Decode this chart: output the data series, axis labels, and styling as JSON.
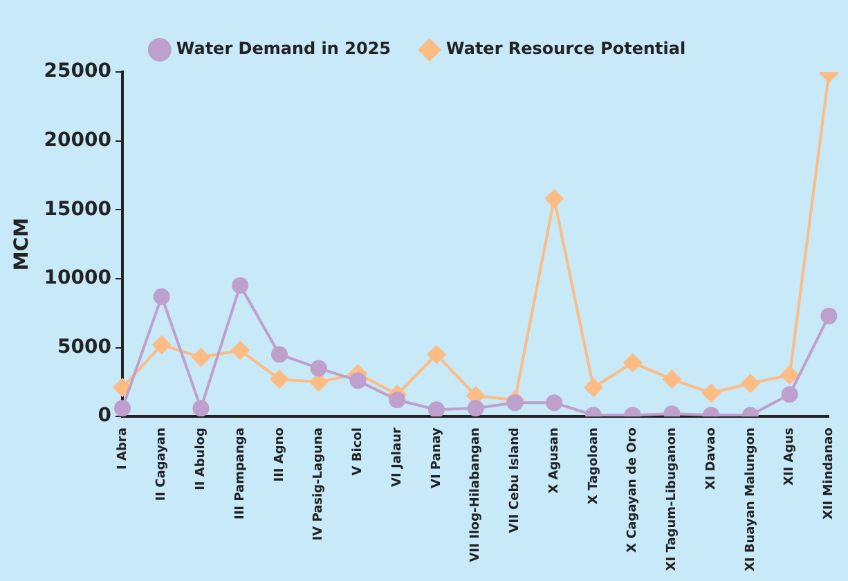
{
  "chart_data": {
    "type": "line",
    "ylabel": "MCM",
    "categories": [
      "I Abra",
      "II Cagayan",
      "II Abulog",
      "III Pampanga",
      "III Agno",
      "IV Pasig-Laguna",
      "V Bicol",
      "VI Jalaur",
      "VI Panay",
      "VII Ilog-Hilabangan",
      "VII Cebu Island",
      "X Agusan",
      "X Tagoloan",
      "X Cagayan de Oro",
      "XI Tagum-Libuganon",
      "XI Davao",
      "XI Buayan Malungon",
      "XII Agus",
      "XII Mindanao"
    ],
    "series": [
      {
        "name": "Water Resource Potential",
        "color": "#fcbc84",
        "marker": "diamond",
        "values": [
          2100,
          5200,
          4300,
          4800,
          2700,
          2500,
          3100,
          1600,
          4500,
          1500,
          1200,
          15800,
          2100,
          3900,
          2700,
          1700,
          2400,
          3000,
          24900
        ]
      },
      {
        "name": "Water Demand in 2025",
        "color": "#bf9fcb",
        "marker": "circle",
        "values": [
          600,
          8700,
          600,
          9500,
          4500,
          3500,
          2600,
          1200,
          500,
          600,
          1000,
          1000,
          100,
          100,
          200,
          100,
          100,
          1600,
          7300
        ]
      }
    ],
    "ylim": [
      0,
      25000
    ],
    "yticks": [
      0,
      5000,
      10000,
      15000,
      20000,
      25000
    ],
    "grid": false,
    "legend": "top",
    "line_style": "solid"
  }
}
